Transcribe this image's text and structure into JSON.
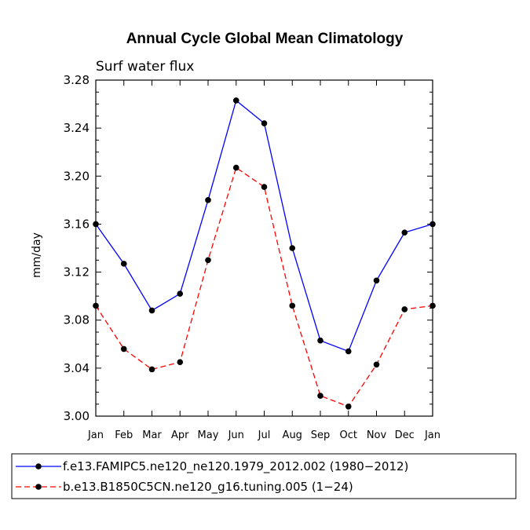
{
  "chart_data": {
    "type": "line",
    "title": "Annual Cycle Global Mean Climatology",
    "subtitle": "Surf water flux",
    "xlabel": "",
    "ylabel": "mm/day",
    "categories": [
      "Jan",
      "Feb",
      "Mar",
      "Apr",
      "May",
      "Jun",
      "Jul",
      "Aug",
      "Sep",
      "Oct",
      "Nov",
      "Dec",
      "Jan"
    ],
    "ylim": [
      3.0,
      3.28
    ],
    "yticks": [
      "3.00",
      "3.04",
      "3.08",
      "3.12",
      "3.16",
      "3.20",
      "3.24",
      "3.28"
    ],
    "legend_position": "bottom",
    "series": [
      {
        "name": "f.e13.FAMIPC5.ne120_ne120.1979_2012.002 (1980−2012)",
        "color": "#0000ff",
        "dash": "solid",
        "values": [
          3.16,
          3.127,
          3.088,
          3.102,
          3.18,
          3.263,
          3.244,
          3.14,
          3.063,
          3.054,
          3.113,
          3.153,
          3.16
        ]
      },
      {
        "name": "b.e13.B1850C5CN.ne120_g16.tuning.005 (1−24)",
        "color": "#ff0000",
        "dash": "dashed",
        "values": [
          3.092,
          3.056,
          3.039,
          3.045,
          3.13,
          3.207,
          3.191,
          3.092,
          3.017,
          3.008,
          3.043,
          3.089,
          3.092
        ]
      }
    ]
  }
}
